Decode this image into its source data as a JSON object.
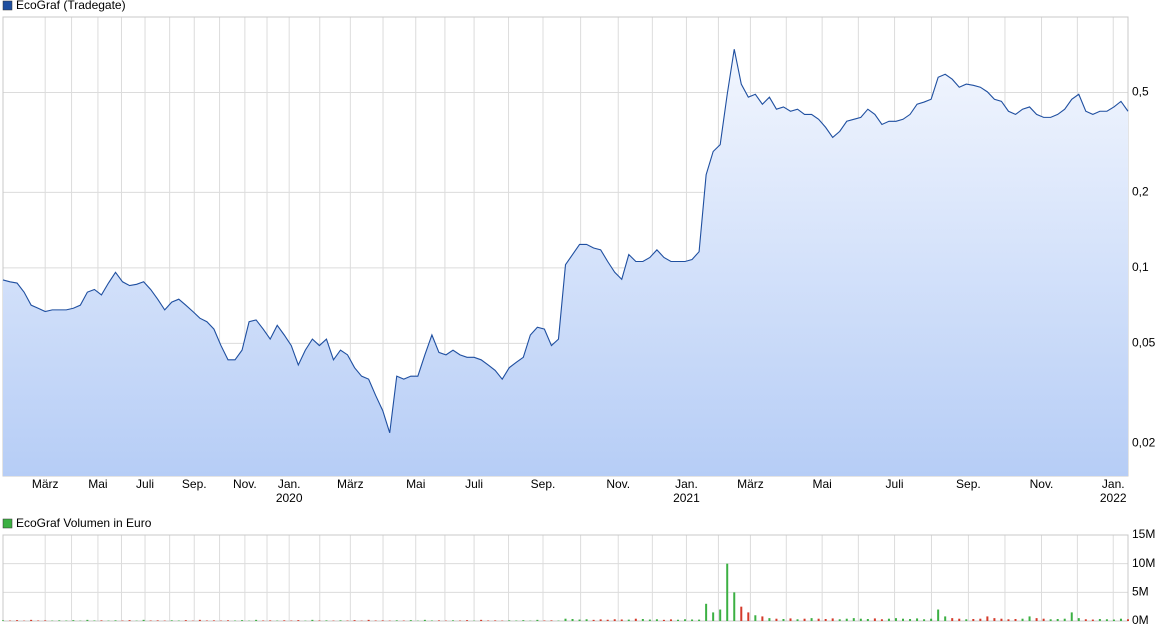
{
  "chart_data": [
    {
      "type": "area",
      "log_scale": true,
      "grid": true,
      "legend": "top-left",
      "series": [
        {
          "name": "EcoGraf (Tradegate)",
          "color": "#1f4fa0",
          "fill_top": "#f2f6fe",
          "fill_bottom": "#b6cdf6",
          "values": [
            0.0895,
            0.088,
            0.087,
            0.08,
            0.071,
            0.069,
            0.067,
            0.068,
            0.068,
            0.068,
            0.069,
            0.071,
            0.08,
            0.082,
            0.078,
            0.087,
            0.096,
            0.088,
            0.085,
            0.086,
            0.088,
            0.082,
            0.075,
            0.068,
            0.073,
            0.075,
            0.071,
            0.067,
            0.063,
            0.061,
            0.057,
            0.049,
            0.043,
            0.043,
            0.047,
            0.061,
            0.062,
            0.057,
            0.052,
            0.059,
            0.054,
            0.049,
            0.041,
            0.047,
            0.052,
            0.049,
            0.052,
            0.043,
            0.047,
            0.045,
            0.04,
            0.037,
            0.036,
            0.031,
            0.027,
            0.022,
            0.037,
            0.036,
            0.037,
            0.037,
            0.045,
            0.054,
            0.046,
            0.045,
            0.047,
            0.045,
            0.044,
            0.044,
            0.043,
            0.041,
            0.039,
            0.036,
            0.04,
            0.042,
            0.044,
            0.054,
            0.058,
            0.057,
            0.049,
            0.052,
            0.103,
            0.113,
            0.124,
            0.124,
            0.12,
            0.118,
            0.106,
            0.096,
            0.09,
            0.113,
            0.106,
            0.106,
            0.11,
            0.118,
            0.11,
            0.106,
            0.106,
            0.106,
            0.108,
            0.116,
            0.235,
            0.291,
            0.31,
            0.492,
            0.744,
            0.54,
            0.479,
            0.492,
            0.449,
            0.479,
            0.429,
            0.438,
            0.421,
            0.429,
            0.409,
            0.409,
            0.391,
            0.363,
            0.331,
            0.35,
            0.384,
            0.391,
            0.398,
            0.429,
            0.409,
            0.373,
            0.384,
            0.384,
            0.391,
            0.409,
            0.449,
            0.458,
            0.47,
            0.575,
            0.591,
            0.565,
            0.525,
            0.54,
            0.534,
            0.525,
            0.503,
            0.47,
            0.461,
            0.421,
            0.409,
            0.429,
            0.438,
            0.409,
            0.398,
            0.398,
            0.409,
            0.429,
            0.47,
            0.492,
            0.421,
            0.409,
            0.421,
            0.421,
            0.438,
            0.461,
            0.421
          ]
        }
      ],
      "x": [
        0,
        1,
        2,
        3,
        4,
        5,
        6,
        7,
        8,
        9,
        10,
        11,
        12,
        13,
        14,
        15,
        16,
        17,
        18,
        19,
        20,
        21,
        22,
        23,
        24,
        25,
        26,
        27,
        28,
        29,
        30,
        31,
        32,
        33,
        34,
        35,
        36,
        37,
        38,
        39,
        40,
        41,
        42,
        43,
        44,
        45,
        46,
        47,
        48,
        49,
        50,
        51,
        52,
        53,
        54,
        55,
        56,
        57,
        58,
        59,
        60,
        61,
        62,
        63,
        64,
        65,
        66,
        67,
        68,
        69,
        70,
        71,
        72,
        73,
        74,
        75,
        76,
        77,
        78,
        79,
        80,
        81,
        82,
        83,
        84,
        85,
        86,
        87,
        88,
        89,
        90,
        91,
        92,
        93,
        94,
        95,
        96,
        97,
        98,
        99,
        100,
        101,
        102,
        103,
        104,
        105,
        106,
        107,
        108,
        109,
        110,
        111,
        112,
        113,
        114,
        115,
        116,
        117,
        118,
        119,
        120,
        121,
        122,
        123,
        124,
        125,
        126,
        127,
        128,
        129,
        130,
        131,
        132,
        133,
        134,
        135,
        136,
        137,
        138,
        139,
        140,
        141,
        142,
        143,
        144,
        145,
        146,
        147,
        148,
        149,
        150,
        151,
        152,
        153,
        154,
        155,
        156,
        157,
        158,
        159,
        160
      ],
      "xlim": [
        0,
        160
      ],
      "xticks": [
        {
          "value": 6.0,
          "label": "März"
        },
        {
          "value": 13.5,
          "label": "Mai"
        },
        {
          "value": 20.2,
          "label": "Juli"
        },
        {
          "value": 27.2,
          "label": "Sep."
        },
        {
          "value": 34.4,
          "label": "Nov."
        },
        {
          "value": 40.7,
          "label": "Jan.",
          "year": "2020"
        },
        {
          "value": 49.4,
          "label": "März"
        },
        {
          "value": 58.7,
          "label": "Mai"
        },
        {
          "value": 67.0,
          "label": "Juli"
        },
        {
          "value": 76.8,
          "label": "Sep."
        },
        {
          "value": 87.5,
          "label": "Nov."
        },
        {
          "value": 97.2,
          "label": "Jan.",
          "year": "2021"
        },
        {
          "value": 106.3,
          "label": "März"
        },
        {
          "value": 116.5,
          "label": "Mai"
        },
        {
          "value": 126.8,
          "label": "Juli"
        },
        {
          "value": 137.3,
          "label": "Sep."
        },
        {
          "value": 147.7,
          "label": "Nov."
        },
        {
          "value": 157.9,
          "label": "Jan.",
          "year": "2022"
        }
      ],
      "ylim": [
        0.0148,
        1.0
      ],
      "yticks": [
        {
          "value": 0.02,
          "label": "0,02"
        },
        {
          "value": 0.05,
          "label": "0,05"
        },
        {
          "value": 0.1,
          "label": "0,1"
        },
        {
          "value": 0.2,
          "label": "0,2"
        },
        {
          "value": 0.5,
          "label": "0,5"
        }
      ]
    },
    {
      "type": "bar",
      "grid": true,
      "legend": "top-left",
      "series": [
        {
          "name": "EcoGraf Volumen in Euro",
          "color": "#3cb043",
          "color_down": "#d43a2a",
          "values": [
            120000,
            80000,
            150000,
            60000,
            200000,
            90000,
            110000,
            70000,
            120000,
            80000,
            150000,
            60000,
            200000,
            90000,
            110000,
            70000,
            120000,
            80000,
            150000,
            60000,
            200000,
            90000,
            110000,
            70000,
            120000,
            80000,
            150000,
            60000,
            200000,
            90000,
            110000,
            70000,
            120000,
            80000,
            150000,
            60000,
            200000,
            90000,
            110000,
            70000,
            120000,
            80000,
            150000,
            60000,
            200000,
            90000,
            110000,
            70000,
            120000,
            80000,
            150000,
            60000,
            200000,
            90000,
            110000,
            70000,
            120000,
            80000,
            150000,
            60000,
            200000,
            90000,
            110000,
            70000,
            120000,
            80000,
            150000,
            60000,
            200000,
            90000,
            110000,
            70000,
            120000,
            80000,
            150000,
            60000,
            200000,
            90000,
            110000,
            70000,
            400000,
            350000,
            250000,
            300000,
            200000,
            280000,
            220000,
            300000,
            260000,
            240000,
            400000,
            350000,
            250000,
            300000,
            200000,
            280000,
            220000,
            300000,
            260000,
            240000,
            3000000,
            1500000,
            2000000,
            10000000,
            5000000,
            2500000,
            1500000,
            1000000,
            800000,
            500000,
            400000,
            350000,
            450000,
            300000,
            400000,
            500000,
            400000,
            350000,
            450000,
            300000,
            400000,
            500000,
            400000,
            350000,
            450000,
            300000,
            400000,
            500000,
            400000,
            350000,
            450000,
            300000,
            400000,
            2000000,
            800000,
            500000,
            400000,
            300000,
            350000,
            400000,
            800000,
            500000,
            400000,
            300000,
            350000,
            400000,
            800000,
            500000,
            400000,
            300000,
            350000,
            400000,
            1500000,
            500000,
            300000,
            250000,
            350000,
            300000,
            250000,
            400000,
            300000
          ]
        }
      ],
      "ylim": [
        0,
        15000000
      ],
      "yticks": [
        {
          "value": 0,
          "label": "0M"
        },
        {
          "value": 5000000,
          "label": "5M"
        },
        {
          "value": 10000000,
          "label": "10M"
        },
        {
          "value": 15000000,
          "label": "15M"
        }
      ]
    }
  ]
}
